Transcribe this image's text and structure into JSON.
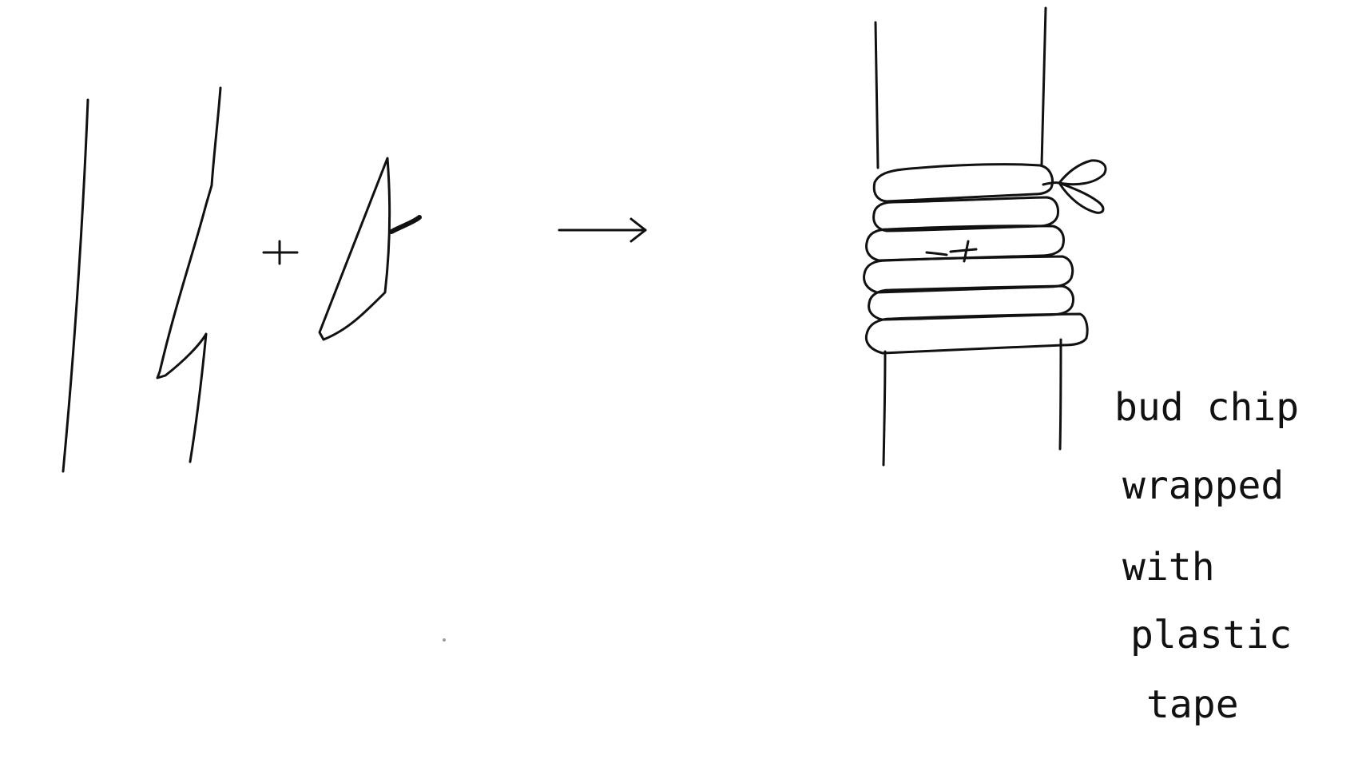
{
  "diagram": {
    "symbols": {
      "plus": "+",
      "arrow": "arrow-right"
    },
    "label_lines": [
      "bud chip",
      "wrapped",
      "with",
      "plastic",
      "tape"
    ]
  }
}
